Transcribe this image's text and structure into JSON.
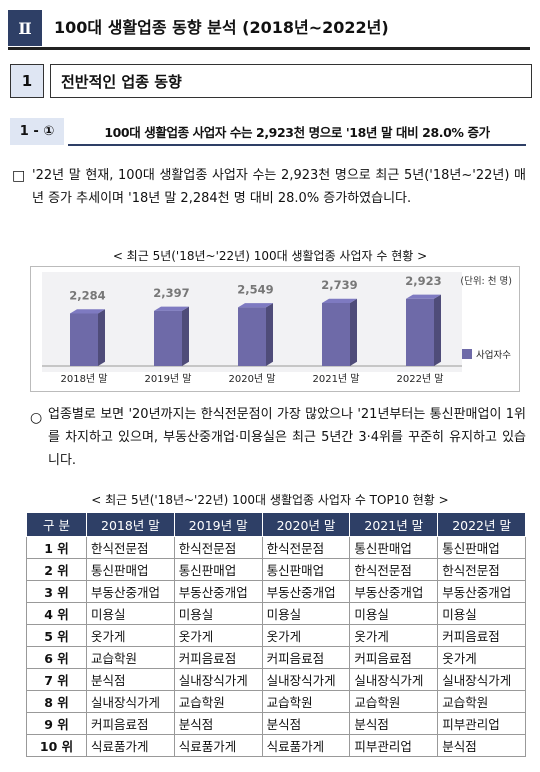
{
  "header": {
    "num": "Ⅱ",
    "title": "100대 생활업종 동향 분석 (2018년~2022년)"
  },
  "section": {
    "num": "1",
    "title": "전반적인 업종 동향"
  },
  "subsection": {
    "num": "1 - ①",
    "title": "100대 생활업종 사업자 수는 2,923천 명으로 '18년 말 대비 28.0% 증가"
  },
  "paragraph1": {
    "marker": "□",
    "text": "'22년 말 현재, 100대 생활업종 사업자 수는 2,923천 명으로 최근 5년('18년~'22년) 매년 증가 추세이며 '18년 말 2,284천 명 대비 28.0% 증가하였습니다."
  },
  "chart_caption": "< 최근 5년('18년~'22년) 100대 생활업종 사업자 수 현황 >",
  "chart_data": {
    "type": "bar",
    "unit": "(단위: 천 명)",
    "categories": [
      "2018년 말",
      "2019년 말",
      "2020년 말",
      "2021년 말",
      "2022년 말"
    ],
    "series": [
      {
        "name": "사업자수",
        "color": "#6e6aa8",
        "values": [
          2284,
          2397,
          2549,
          2739,
          2923
        ],
        "value_labels": [
          "2,284",
          "2,397",
          "2,549",
          "2,739",
          "2,923"
        ]
      }
    ],
    "ylim": [
      0,
      4000
    ],
    "legend": "right"
  },
  "paragraph2": {
    "marker": "○",
    "text": "업종별로 보면 '20년까지는 한식전문점이 가장 많았으나 '21년부터는 통신판매업이 1위를 차지하고 있으며, 부동산중개업·미용실은 최근 5년간 3·4위를 꾸준히 유지하고 있습니다."
  },
  "table_caption": "< 최근 5년('18년~'22년) 100대 생활업종 사업자 수 TOP10 현황 >",
  "table": {
    "header": [
      "구 분",
      "2018년 말",
      "2019년 말",
      "2020년 말",
      "2021년 말",
      "2022년 말"
    ],
    "rows": [
      [
        "1 위",
        "한식전문점",
        "한식전문점",
        "한식전문점",
        "통신판매업",
        "통신판매업"
      ],
      [
        "2 위",
        "통신판매업",
        "통신판매업",
        "통신판매업",
        "한식전문점",
        "한식전문점"
      ],
      [
        "3 위",
        "부동산중개업",
        "부동산중개업",
        "부동산중개업",
        "부동산중개업",
        "부동산중개업"
      ],
      [
        "4 위",
        "미용실",
        "미용실",
        "미용실",
        "미용실",
        "미용실"
      ],
      [
        "5 위",
        "옷가게",
        "옷가게",
        "옷가게",
        "옷가게",
        "커피음료점"
      ],
      [
        "6 위",
        "교습학원",
        "커피음료점",
        "커피음료점",
        "커피음료점",
        "옷가게"
      ],
      [
        "7 위",
        "분식점",
        "실내장식가게",
        "실내장식가게",
        "실내장식가게",
        "실내장식가게"
      ],
      [
        "8 위",
        "실내장식가게",
        "교습학원",
        "교습학원",
        "교습학원",
        "교습학원"
      ],
      [
        "9 위",
        "커피음료점",
        "분식점",
        "분식점",
        "분식점",
        "피부관리업"
      ],
      [
        "10 위",
        "식료품가게",
        "식료품가게",
        "식료품가게",
        "피부관리업",
        "분식점"
      ]
    ]
  }
}
